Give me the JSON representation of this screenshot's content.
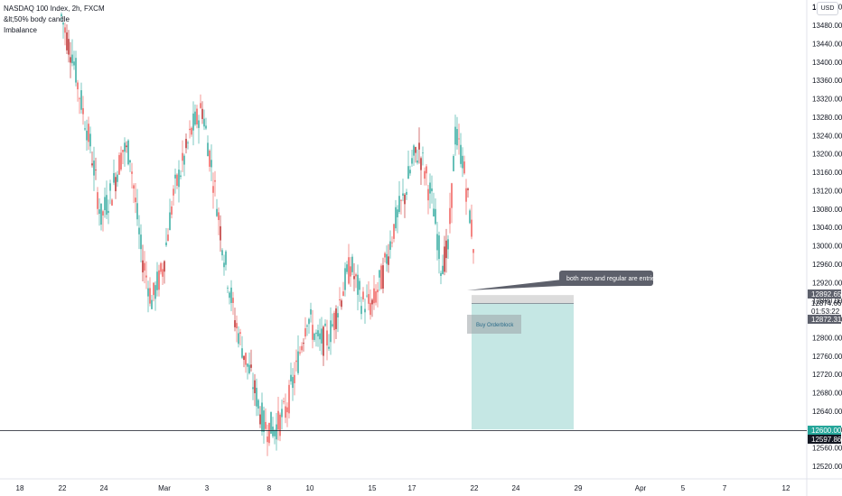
{
  "legend": {
    "title": "NASDAQ 100 Index, 2h, FXCM",
    "line2": "&lt;50% body candle",
    "line3": "Imbalance"
  },
  "currency_button": "USD",
  "colors": {
    "up": "#26a69a",
    "down": "#ef5350",
    "down_dark": "#b71c1c",
    "zone_target": "#b2dfdb",
    "zone_stop": "#d6d6d6",
    "label_gray": "#5d606b",
    "label_dark": "#131722",
    "label_green": "#26a69a"
  },
  "chart_data": {
    "type": "candlestick",
    "title": "NASDAQ 100 Index, 2h, FXCM",
    "ylim": [
      12490,
      13520
    ],
    "x_ticks": [
      "18",
      "22",
      "24",
      "Mar",
      "3",
      "8",
      "10",
      "15",
      "17",
      "22",
      "24",
      "29",
      "Apr",
      "5",
      "7",
      "12"
    ],
    "y_ticks": [
      12520,
      12560,
      12600,
      12640,
      12680,
      12720,
      12760,
      12800,
      12840,
      12880,
      12920,
      12960,
      13000,
      13040,
      13080,
      13120,
      13160,
      13200,
      13240,
      13280,
      13320,
      13360,
      13400,
      13440,
      13480,
      13520
    ],
    "y_tick_top_label": "13",
    "price_labels": [
      {
        "value": "12892.65",
        "style": "gray"
      },
      {
        "value": "12874.66",
        "style": "plain"
      },
      {
        "value": "01:53:22",
        "style": "plain"
      },
      {
        "value": "12872.31",
        "style": "gray"
      },
      {
        "value": "12600.00",
        "style": "green"
      },
      {
        "value": "12597.86",
        "style": "dark"
      }
    ],
    "horizontal_line": 12597.86,
    "note": "both zero and regular are entries.",
    "orderblock_label": "Buy Orderblock",
    "position": {
      "entry": 12874.66,
      "stop": 12892.65,
      "target": 12600.0
    },
    "series_path": [
      [
        0,
        13500,
        13520,
        13420
      ],
      [
        4,
        13440,
        13450,
        13400
      ],
      [
        6,
        13420,
        13440,
        13310
      ],
      [
        10,
        13330,
        13350,
        13190
      ],
      [
        16,
        13220,
        13300,
        12870
      ],
      [
        22,
        13060,
        13160,
        12930
      ],
      [
        28,
        13120,
        13200,
        13060
      ],
      [
        34,
        13210,
        13260,
        13150
      ],
      [
        38,
        13200,
        13240,
        12900
      ],
      [
        44,
        12990,
        13060,
        12860
      ],
      [
        50,
        12880,
        13050,
        12760
      ],
      [
        56,
        12950,
        13120,
        12880
      ],
      [
        62,
        13110,
        13200,
        13050
      ],
      [
        68,
        13190,
        13280,
        13140
      ],
      [
        72,
        13250,
        13340,
        13200
      ],
      [
        78,
        13300,
        13320,
        13120
      ],
      [
        84,
        13150,
        13180,
        12960
      ],
      [
        90,
        12980,
        13010,
        12820
      ],
      [
        96,
        12840,
        12880,
        12720
      ],
      [
        100,
        12780,
        12800,
        12640
      ],
      [
        106,
        12700,
        12760,
        12560
      ],
      [
        112,
        12610,
        12690,
        12500
      ],
      [
        118,
        12600,
        12700,
        12480
      ],
      [
        124,
        12640,
        12760,
        12580
      ],
      [
        130,
        12730,
        12870,
        12690
      ],
      [
        136,
        12850,
        12900,
        12760
      ],
      [
        142,
        12790,
        12840,
        12720
      ],
      [
        148,
        12800,
        12900,
        12760
      ],
      [
        154,
        12880,
        12990,
        12840
      ],
      [
        160,
        12960,
        13040,
        12860
      ],
      [
        166,
        12880,
        12940,
        12800
      ],
      [
        172,
        12870,
        12960,
        12840
      ],
      [
        178,
        12940,
        13060,
        12900
      ],
      [
        184,
        13040,
        13110,
        12990
      ],
      [
        190,
        13110,
        13190,
        13060
      ],
      [
        194,
        13180,
        13300,
        13150
      ],
      [
        198,
        13210,
        13240,
        13130
      ],
      [
        202,
        13150,
        13200,
        13070
      ],
      [
        206,
        13080,
        13100,
        12950
      ],
      [
        210,
        12960,
        13010,
        12900
      ],
      [
        214,
        12990,
        13260,
        12960
      ],
      [
        218,
        13240,
        13290,
        13170
      ],
      [
        222,
        13190,
        13220,
        13060
      ],
      [
        226,
        13070,
        13080,
        12930
      ],
      [
        230,
        12940,
        12960,
        12840
      ],
      [
        234,
        12840,
        12880,
        12760
      ],
      [
        238,
        12820,
        12890,
        12740
      ],
      [
        242,
        12870,
        12900,
        12780
      ],
      [
        246,
        12850,
        12880,
        12830
      ],
      [
        250,
        12860,
        12895,
        12840
      ],
      [
        253,
        12875,
        12890,
        12860
      ]
    ]
  }
}
